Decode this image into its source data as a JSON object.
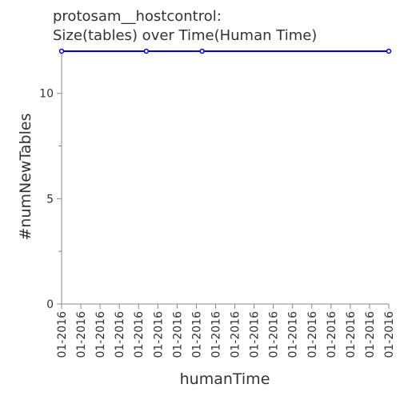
{
  "chart_data": {
    "type": "line",
    "title": [
      "protosam__hostcontrol:",
      "Size(tables) over Time(Human Time)"
    ],
    "xlabel": "humanTime",
    "ylabel": "#numNewTables",
    "x_tick_labels": [
      "01-2016",
      "01-2016",
      "01-2016",
      "01-2016",
      "01-2016",
      "01-2016",
      "01-2016",
      "01-2016",
      "01-2016",
      "01-2016",
      "01-2016",
      "01-2016",
      "01-2016",
      "01-2016",
      "01-2016",
      "01-2016",
      "01-2016",
      "01-2016"
    ],
    "y_ticks": [
      0,
      5,
      10
    ],
    "ylim": [
      0,
      12
    ],
    "xlim": [
      0,
      17
    ],
    "grid": false,
    "series": [
      {
        "color": "#0000cc",
        "x": [
          0,
          4.4,
          7.3,
          17
        ],
        "y": [
          12,
          12,
          12,
          12
        ]
      }
    ]
  }
}
